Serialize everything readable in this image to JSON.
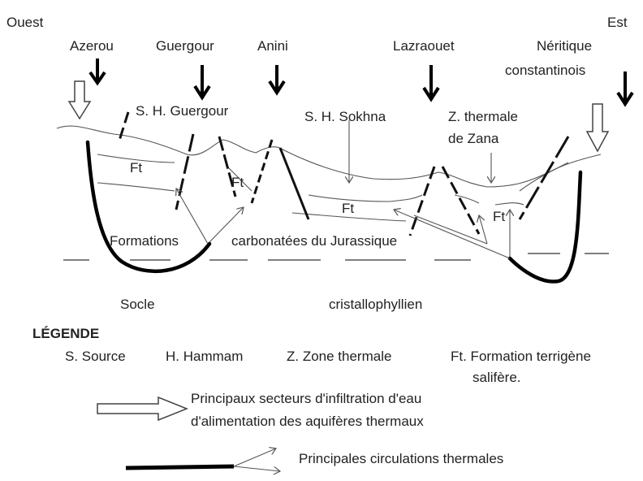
{
  "orientation": {
    "west": "Ouest",
    "east": "Est"
  },
  "localities": [
    "Azerou",
    "Guergour",
    "Anini",
    "Lazraouet"
  ],
  "neritique": [
    "Néritique",
    "constantinois"
  ],
  "springs": [
    "S. H. Guergour",
    "S. H. Sokhna"
  ],
  "thermal_zone": [
    "Z. thermale",
    "de Zana"
  ],
  "ft_labels": [
    "Ft",
    "Ft",
    "Ft",
    "Ft"
  ],
  "formation": [
    "Formations",
    "carbonatées du Jurassique"
  ],
  "basement": [
    "Socle",
    "cristallophyllien"
  ],
  "legend": {
    "title": "LÉGENDE",
    "abbreviations": [
      "S. Source",
      "H. Hammam",
      "Z. Zone thermale",
      "Ft. Formation terrigène"
    ],
    "abbreviation_cont": "salifère.",
    "infiltration": [
      "Principaux secteurs d'infiltration d'eau",
      "d'alimentation des aquifères thermaux"
    ],
    "circulation": "Principales circulations thermales"
  }
}
